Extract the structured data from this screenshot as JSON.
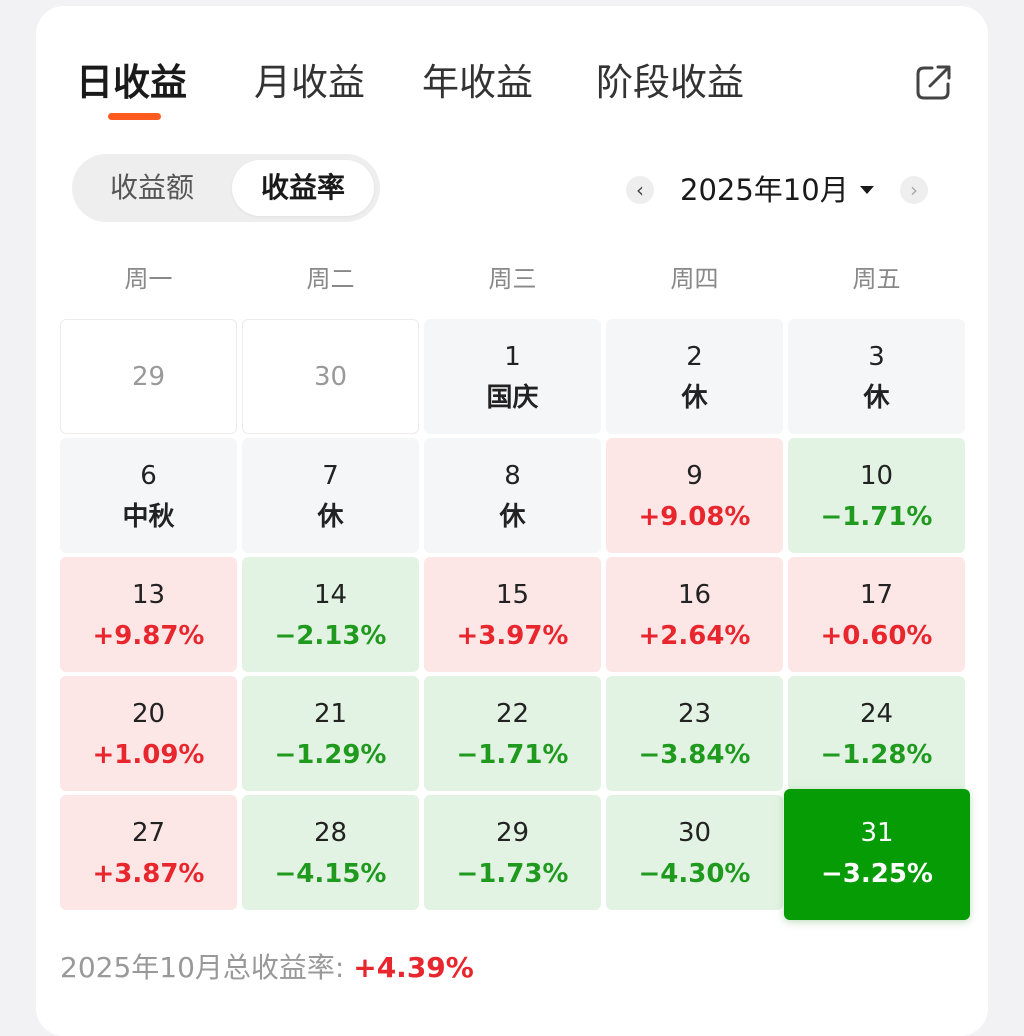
{
  "tabs": [
    {
      "label": "日收益",
      "active": true
    },
    {
      "label": "月收益",
      "active": false
    },
    {
      "label": "年收益",
      "active": false
    },
    {
      "label": "阶段收益",
      "active": false
    }
  ],
  "share_icon": "share-icon",
  "segment": {
    "options": [
      "收益额",
      "收益率"
    ],
    "selected": "收益率"
  },
  "month_nav": {
    "prev_label": "‹",
    "month": "2025年10月",
    "next_label": "›"
  },
  "weekdays": [
    "周一",
    "周二",
    "周三",
    "周四",
    "周五"
  ],
  "colors": {
    "accent": "#ff5a1f",
    "up": "#e8262d",
    "down": "#1f9a1f",
    "selected": "#059c05"
  },
  "calendar": [
    [
      {
        "day": "29",
        "sub": "",
        "type": "outside"
      },
      {
        "day": "30",
        "sub": "",
        "type": "outside"
      },
      {
        "day": "1",
        "sub": "国庆",
        "type": "holiday"
      },
      {
        "day": "2",
        "sub": "休",
        "type": "holiday"
      },
      {
        "day": "3",
        "sub": "休",
        "type": "holiday"
      }
    ],
    [
      {
        "day": "6",
        "sub": "中秋",
        "type": "holiday"
      },
      {
        "day": "7",
        "sub": "休",
        "type": "holiday"
      },
      {
        "day": "8",
        "sub": "休",
        "type": "holiday"
      },
      {
        "day": "9",
        "sub": "+9.08%",
        "type": "up"
      },
      {
        "day": "10",
        "sub": "−1.71%",
        "type": "down"
      }
    ],
    [
      {
        "day": "13",
        "sub": "+9.87%",
        "type": "up"
      },
      {
        "day": "14",
        "sub": "−2.13%",
        "type": "down"
      },
      {
        "day": "15",
        "sub": "+3.97%",
        "type": "up"
      },
      {
        "day": "16",
        "sub": "+2.64%",
        "type": "up"
      },
      {
        "day": "17",
        "sub": "+0.60%",
        "type": "up"
      }
    ],
    [
      {
        "day": "20",
        "sub": "+1.09%",
        "type": "up"
      },
      {
        "day": "21",
        "sub": "−1.29%",
        "type": "down"
      },
      {
        "day": "22",
        "sub": "−1.71%",
        "type": "down"
      },
      {
        "day": "23",
        "sub": "−3.84%",
        "type": "down"
      },
      {
        "day": "24",
        "sub": "−1.28%",
        "type": "down"
      }
    ],
    [
      {
        "day": "27",
        "sub": "+3.87%",
        "type": "up"
      },
      {
        "day": "28",
        "sub": "−4.15%",
        "type": "down"
      },
      {
        "day": "29",
        "sub": "−1.73%",
        "type": "down"
      },
      {
        "day": "30",
        "sub": "−4.30%",
        "type": "down"
      },
      {
        "day": "31",
        "sub": "−3.25%",
        "type": "selected"
      }
    ]
  ],
  "footer": {
    "label": "2025年10月总收益率: ",
    "total": "+4.39%"
  }
}
